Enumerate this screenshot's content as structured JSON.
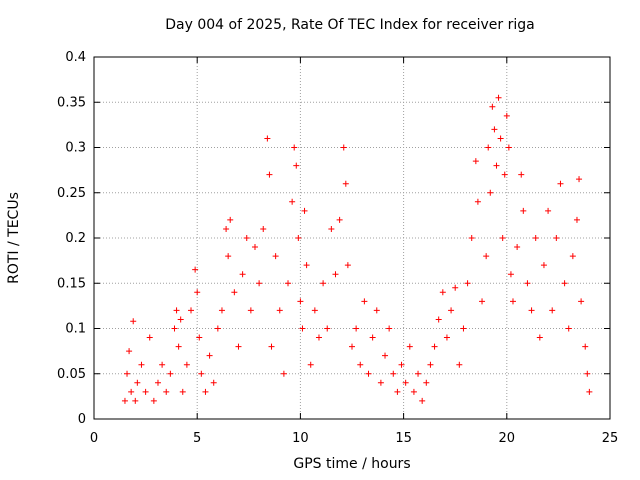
{
  "chart_data": {
    "type": "scatter",
    "title": "Day 004 of 2025, Rate Of TEC Index for receiver riga",
    "xlabel": "GPS time / hours",
    "ylabel": "ROTI / TECUs",
    "xlim": [
      0,
      25
    ],
    "ylim": [
      0,
      0.4
    ],
    "x_ticks": [
      "0",
      "5",
      "10",
      "15",
      "20",
      "25"
    ],
    "y_ticks": [
      "0",
      "0.05",
      "0.1",
      "0.15",
      "0.2",
      "0.25",
      "0.3",
      "0.35",
      "0.4"
    ],
    "grid": true,
    "marker": "+",
    "color": "#ff0000",
    "series": [
      {
        "values": [
          [
            1.5,
            0.02
          ],
          [
            1.6,
            0.05
          ],
          [
            1.7,
            0.075
          ],
          [
            1.8,
            0.03
          ],
          [
            1.9,
            0.108
          ],
          [
            2.0,
            0.02
          ],
          [
            2.1,
            0.04
          ],
          [
            2.3,
            0.06
          ],
          [
            2.5,
            0.03
          ],
          [
            2.7,
            0.09
          ],
          [
            2.9,
            0.02
          ],
          [
            3.1,
            0.04
          ],
          [
            3.3,
            0.06
          ],
          [
            3.5,
            0.03
          ],
          [
            3.7,
            0.05
          ],
          [
            3.9,
            0.1
          ],
          [
            4.0,
            0.12
          ],
          [
            4.1,
            0.08
          ],
          [
            4.2,
            0.11
          ],
          [
            4.3,
            0.03
          ],
          [
            4.5,
            0.06
          ],
          [
            4.7,
            0.12
          ],
          [
            4.9,
            0.165
          ],
          [
            5.0,
            0.14
          ],
          [
            5.1,
            0.09
          ],
          [
            5.2,
            0.05
          ],
          [
            5.4,
            0.03
          ],
          [
            5.6,
            0.07
          ],
          [
            5.8,
            0.04
          ],
          [
            6.0,
            0.1
          ],
          [
            6.2,
            0.12
          ],
          [
            6.4,
            0.21
          ],
          [
            6.5,
            0.18
          ],
          [
            6.6,
            0.22
          ],
          [
            6.8,
            0.14
          ],
          [
            7.0,
            0.08
          ],
          [
            7.2,
            0.16
          ],
          [
            7.4,
            0.2
          ],
          [
            7.6,
            0.12
          ],
          [
            7.8,
            0.19
          ],
          [
            8.0,
            0.15
          ],
          [
            8.2,
            0.21
          ],
          [
            8.4,
            0.31
          ],
          [
            8.5,
            0.27
          ],
          [
            8.6,
            0.08
          ],
          [
            8.8,
            0.18
          ],
          [
            9.0,
            0.12
          ],
          [
            9.2,
            0.05
          ],
          [
            9.4,
            0.15
          ],
          [
            9.6,
            0.24
          ],
          [
            9.7,
            0.3
          ],
          [
            9.8,
            0.28
          ],
          [
            9.9,
            0.2
          ],
          [
            10.0,
            0.13
          ],
          [
            10.1,
            0.1
          ],
          [
            10.2,
            0.23
          ],
          [
            10.3,
            0.17
          ],
          [
            10.5,
            0.06
          ],
          [
            10.7,
            0.12
          ],
          [
            10.9,
            0.09
          ],
          [
            11.1,
            0.15
          ],
          [
            11.3,
            0.1
          ],
          [
            11.5,
            0.21
          ],
          [
            11.7,
            0.16
          ],
          [
            11.9,
            0.22
          ],
          [
            12.1,
            0.3
          ],
          [
            12.2,
            0.26
          ],
          [
            12.3,
            0.17
          ],
          [
            12.5,
            0.08
          ],
          [
            12.7,
            0.1
          ],
          [
            12.9,
            0.06
          ],
          [
            13.1,
            0.13
          ],
          [
            13.3,
            0.05
          ],
          [
            13.5,
            0.09
          ],
          [
            13.7,
            0.12
          ],
          [
            13.9,
            0.04
          ],
          [
            14.1,
            0.07
          ],
          [
            14.3,
            0.1
          ],
          [
            14.5,
            0.05
          ],
          [
            14.7,
            0.03
          ],
          [
            14.9,
            0.06
          ],
          [
            15.1,
            0.04
          ],
          [
            15.3,
            0.08
          ],
          [
            15.5,
            0.03
          ],
          [
            15.7,
            0.05
          ],
          [
            15.9,
            0.02
          ],
          [
            16.1,
            0.04
          ],
          [
            16.3,
            0.06
          ],
          [
            16.5,
            0.08
          ],
          [
            16.7,
            0.11
          ],
          [
            16.9,
            0.14
          ],
          [
            17.1,
            0.09
          ],
          [
            17.3,
            0.12
          ],
          [
            17.5,
            0.145
          ],
          [
            17.7,
            0.06
          ],
          [
            17.9,
            0.1
          ],
          [
            18.1,
            0.15
          ],
          [
            18.3,
            0.2
          ],
          [
            18.5,
            0.285
          ],
          [
            18.6,
            0.24
          ],
          [
            18.8,
            0.13
          ],
          [
            19.0,
            0.18
          ],
          [
            19.1,
            0.3
          ],
          [
            19.2,
            0.25
          ],
          [
            19.3,
            0.345
          ],
          [
            19.4,
            0.32
          ],
          [
            19.5,
            0.28
          ],
          [
            19.6,
            0.355
          ],
          [
            19.7,
            0.31
          ],
          [
            19.8,
            0.2
          ],
          [
            19.9,
            0.27
          ],
          [
            20.0,
            0.335
          ],
          [
            20.1,
            0.3
          ],
          [
            20.2,
            0.16
          ],
          [
            20.3,
            0.13
          ],
          [
            20.5,
            0.19
          ],
          [
            20.7,
            0.27
          ],
          [
            20.8,
            0.23
          ],
          [
            21.0,
            0.15
          ],
          [
            21.2,
            0.12
          ],
          [
            21.4,
            0.2
          ],
          [
            21.6,
            0.09
          ],
          [
            21.8,
            0.17
          ],
          [
            22.0,
            0.23
          ],
          [
            22.2,
            0.12
          ],
          [
            22.4,
            0.2
          ],
          [
            22.6,
            0.26
          ],
          [
            22.8,
            0.15
          ],
          [
            23.0,
            0.1
          ],
          [
            23.2,
            0.18
          ],
          [
            23.4,
            0.22
          ],
          [
            23.5,
            0.265
          ],
          [
            23.6,
            0.13
          ],
          [
            23.8,
            0.08
          ],
          [
            23.9,
            0.05
          ],
          [
            24.0,
            0.03
          ]
        ]
      }
    ]
  }
}
